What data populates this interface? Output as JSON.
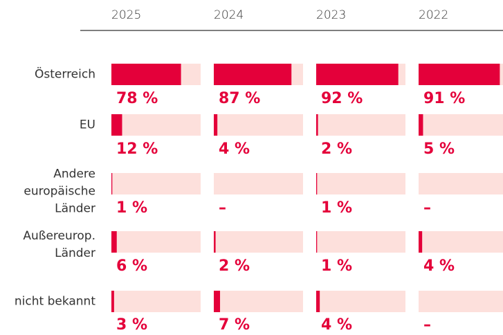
{
  "chart_data": {
    "type": "bar",
    "categories": [
      "Österreich",
      "EU",
      "Andere\neuropäische\nLänder",
      "Außereurop.\nLänder",
      "nicht bekannt"
    ],
    "series": [
      {
        "name": "2025",
        "color": "#e4003a",
        "values": [
          78,
          12,
          1,
          6,
          3
        ],
        "value_labels": [
          "78 %",
          "12 %",
          "1 %",
          "6 %",
          "3 %"
        ]
      },
      {
        "name": "2024",
        "color": "#e4003a",
        "values": [
          87,
          4,
          null,
          2,
          7
        ],
        "value_labels": [
          "87 %",
          "4 %",
          "–",
          "2 %",
          "7 %"
        ]
      },
      {
        "name": "2023",
        "color": "#e4003a",
        "values": [
          92,
          2,
          1,
          1,
          4
        ],
        "value_labels": [
          "92 %",
          "2 %",
          "1 %",
          "1 %",
          "4 %"
        ]
      },
      {
        "name": "2022",
        "color": "#e4003a",
        "values": [
          91,
          5,
          null,
          4,
          null
        ],
        "value_labels": [
          "91 %",
          "5 %",
          "–",
          "4 %",
          "–"
        ]
      }
    ],
    "track_color": "#fde0dc",
    "xlim": [
      0,
      100
    ]
  }
}
